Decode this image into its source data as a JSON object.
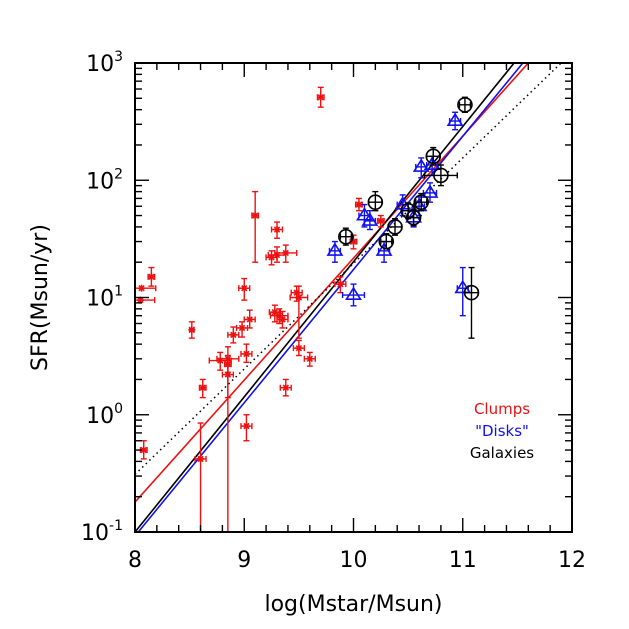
{
  "chart_data": {
    "type": "scatter",
    "xlabel": "log(Mstar/Msun)",
    "ylabel": "SFR(Msun/yr)",
    "xlim": [
      8,
      12
    ],
    "ylim": [
      0.1,
      1000
    ],
    "y_scale": "log",
    "x_ticks": [
      "8",
      "9",
      "10",
      "11",
      "12"
    ],
    "y_ticks": [
      {
        "value": 0.1,
        "base": "10",
        "exp": "-1"
      },
      {
        "value": 1,
        "base": "10",
        "exp": "0"
      },
      {
        "value": 10,
        "base": "10",
        "exp": "1"
      },
      {
        "value": 100,
        "base": "10",
        "exp": "2"
      },
      {
        "value": 1000,
        "base": "10",
        "exp": "3"
      }
    ],
    "legend": {
      "placement": "bottom-right",
      "entries": [
        {
          "label": "Clumps",
          "color": "#ee1111"
        },
        {
          "label": "\"Disks\"",
          "color": "#1111ee"
        },
        {
          "label": "Galaxies",
          "color": "#000000"
        }
      ]
    },
    "series": [
      {
        "name": "Clumps",
        "color": "#ee1111",
        "marker": "asterisk",
        "points": [
          {
            "x": 8.06,
            "y": 12.0,
            "xerr": 0.13,
            "ylo": 12.0,
            "yhi": 12.0
          },
          {
            "x": 8.15,
            "y": 15.0,
            "xerr": 0.03,
            "ylo": 12.5,
            "yhi": 18.0
          },
          {
            "x": 8.05,
            "y": 9.5,
            "xerr": 0.13,
            "ylo": 9.5,
            "yhi": 9.5
          },
          {
            "x": 8.08,
            "y": 0.5,
            "xerr": 0.03,
            "ylo": 0.42,
            "yhi": 0.6
          },
          {
            "x": 8.52,
            "y": 5.3,
            "xerr": 0.02,
            "ylo": 4.5,
            "yhi": 6.2
          },
          {
            "x": 8.62,
            "y": 1.7,
            "xerr": 0.03,
            "ylo": 1.4,
            "yhi": 2.0
          },
          {
            "x": 8.6,
            "y": 0.42,
            "xerr": 0.05,
            "ylo": 0.05,
            "yhi": 0.85
          },
          {
            "x": 8.78,
            "y": 2.9,
            "xerr": 0.1,
            "ylo": 2.4,
            "yhi": 3.4
          },
          {
            "x": 8.85,
            "y": 3.0,
            "xerr": 0.1,
            "ylo": 0.05,
            "yhi": 3.8
          },
          {
            "x": 8.85,
            "y": 2.7,
            "xerr": 0.03,
            "ylo": 2.3,
            "yhi": 3.2
          },
          {
            "x": 8.85,
            "y": 2.2,
            "xerr": 0.05,
            "ylo": 1.4,
            "yhi": 2.6
          },
          {
            "x": 8.9,
            "y": 4.8,
            "xerr": 0.05,
            "ylo": 4.1,
            "yhi": 5.6
          },
          {
            "x": 8.98,
            "y": 5.5,
            "xerr": 0.05,
            "ylo": 4.6,
            "yhi": 6.2
          },
          {
            "x": 9.0,
            "y": 12.0,
            "xerr": 0.05,
            "ylo": 9.5,
            "yhi": 14.5
          },
          {
            "x": 9.02,
            "y": 3.3,
            "xerr": 0.05,
            "ylo": 2.8,
            "yhi": 4.0
          },
          {
            "x": 9.05,
            "y": 6.5,
            "xerr": 0.05,
            "ylo": 5.5,
            "yhi": 7.8
          },
          {
            "x": 9.02,
            "y": 0.8,
            "xerr": 0.05,
            "ylo": 0.6,
            "yhi": 1.0
          },
          {
            "x": 9.1,
            "y": 50,
            "xerr": 0.03,
            "ylo": 20,
            "yhi": 80
          },
          {
            "x": 9.25,
            "y": 22,
            "xerr": 0.05,
            "ylo": 19,
            "yhi": 25
          },
          {
            "x": 9.3,
            "y": 38,
            "xerr": 0.05,
            "ylo": 32,
            "yhi": 44
          },
          {
            "x": 9.3,
            "y": 23,
            "xerr": 0.08,
            "ylo": 20,
            "yhi": 27
          },
          {
            "x": 9.38,
            "y": 24,
            "xerr": 0.1,
            "ylo": 20,
            "yhi": 28
          },
          {
            "x": 9.28,
            "y": 7.5,
            "xerr": 0.05,
            "ylo": 6.2,
            "yhi": 8.6
          },
          {
            "x": 9.32,
            "y": 7.0,
            "xerr": 0.08,
            "ylo": 6.0,
            "yhi": 8.0
          },
          {
            "x": 9.35,
            "y": 6.5,
            "xerr": 0.05,
            "ylo": 5.5,
            "yhi": 7.6
          },
          {
            "x": 9.38,
            "y": 1.7,
            "xerr": 0.05,
            "ylo": 1.45,
            "yhi": 2.0
          },
          {
            "x": 9.48,
            "y": 11,
            "xerr": 0.05,
            "ylo": 9.3,
            "yhi": 12.5
          },
          {
            "x": 9.5,
            "y": 10,
            "xerr": 0.08,
            "ylo": 4.5,
            "yhi": 12.5
          },
          {
            "x": 9.5,
            "y": 3.7,
            "xerr": 0.05,
            "ylo": 3.2,
            "yhi": 4.3
          },
          {
            "x": 9.6,
            "y": 3.0,
            "xerr": 0.05,
            "ylo": 2.6,
            "yhi": 3.4
          },
          {
            "x": 9.7,
            "y": 510,
            "xerr": 0.03,
            "ylo": 420,
            "yhi": 620
          },
          {
            "x": 9.88,
            "y": 13,
            "xerr": 0.05,
            "ylo": 11,
            "yhi": 15
          },
          {
            "x": 10.0,
            "y": 30,
            "xerr": 0.03,
            "ylo": 26,
            "yhi": 34
          },
          {
            "x": 10.05,
            "y": 62,
            "xerr": 0.03,
            "ylo": 55,
            "yhi": 70
          },
          {
            "x": 10.25,
            "y": 45,
            "xerr": 0.03,
            "ylo": 40,
            "yhi": 50
          }
        ]
      },
      {
        "name": "\"Disks\"",
        "color": "#1111ee",
        "marker": "triangle",
        "points": [
          {
            "x": 9.83,
            "y": 25,
            "xerr": 0.05,
            "ylo": 20,
            "yhi": 30
          },
          {
            "x": 10.0,
            "y": 10.5,
            "xerr": 0.1,
            "ylo": 8.5,
            "yhi": 13
          },
          {
            "x": 10.1,
            "y": 50,
            "xerr": 0.05,
            "ylo": 40,
            "yhi": 62
          },
          {
            "x": 10.15,
            "y": 45,
            "xerr": 0.05,
            "ylo": 38,
            "yhi": 55
          },
          {
            "x": 10.28,
            "y": 25,
            "xerr": 0.05,
            "ylo": 20,
            "yhi": 30
          },
          {
            "x": 10.45,
            "y": 62,
            "xerr": 0.05,
            "ylo": 50,
            "yhi": 75
          },
          {
            "x": 10.55,
            "y": 48,
            "xerr": 0.06,
            "ylo": 40,
            "yhi": 58
          },
          {
            "x": 10.6,
            "y": 60,
            "xerr": 0.05,
            "ylo": 50,
            "yhi": 72
          },
          {
            "x": 10.62,
            "y": 130,
            "xerr": 0.05,
            "ylo": 105,
            "yhi": 155
          },
          {
            "x": 10.7,
            "y": 78,
            "xerr": 0.06,
            "ylo": 65,
            "yhi": 95
          },
          {
            "x": 10.72,
            "y": 135,
            "xerr": 0.05,
            "ylo": 110,
            "yhi": 160
          },
          {
            "x": 10.93,
            "y": 320,
            "xerr": 0.05,
            "ylo": 270,
            "yhi": 380
          },
          {
            "x": 11.0,
            "y": 12,
            "xerr": 0.05,
            "ylo": 7,
            "yhi": 18
          }
        ]
      },
      {
        "name": "Galaxies",
        "color": "#000000",
        "marker": "circle",
        "points": [
          {
            "x": 9.93,
            "y": 33,
            "xerr": 0.05,
            "ylo": 28,
            "yhi": 39
          },
          {
            "x": 10.2,
            "y": 65,
            "xerr": 0.06,
            "ylo": 55,
            "yhi": 80
          },
          {
            "x": 10.3,
            "y": 30,
            "xerr": 0.05,
            "ylo": 26,
            "yhi": 35
          },
          {
            "x": 10.38,
            "y": 40,
            "xerr": 0.06,
            "ylo": 34,
            "yhi": 47
          },
          {
            "x": 10.5,
            "y": 55,
            "xerr": 0.06,
            "ylo": 47,
            "yhi": 64
          },
          {
            "x": 10.55,
            "y": 48,
            "xerr": 0.06,
            "ylo": 41,
            "yhi": 56
          },
          {
            "x": 10.62,
            "y": 65,
            "xerr": 0.05,
            "ylo": 55,
            "yhi": 77
          },
          {
            "x": 10.73,
            "y": 160,
            "xerr": 0.06,
            "ylo": 135,
            "yhi": 190
          },
          {
            "x": 10.8,
            "y": 110,
            "xerr": 0.15,
            "ylo": 90,
            "yhi": 135
          },
          {
            "x": 11.02,
            "y": 440,
            "xerr": 0.05,
            "ylo": 380,
            "yhi": 510
          },
          {
            "x": 11.08,
            "y": 11,
            "xerr": 0.06,
            "ylo": 4.5,
            "yhi": 18
          }
        ]
      }
    ],
    "fit_lines": [
      {
        "series": "Clumps",
        "color": "#ee1111",
        "style": "solid",
        "points": [
          [
            8.0,
            0.18
          ],
          [
            11.6,
            1000
          ]
        ]
      },
      {
        "series": "\"Disks\"",
        "color": "#1111ee",
        "style": "solid",
        "points": [
          [
            8.03,
            0.1
          ],
          [
            11.55,
            1000
          ]
        ]
      },
      {
        "series": "Galaxies",
        "color": "#000000",
        "style": "solid",
        "points": [
          [
            8.0,
            0.1
          ],
          [
            11.47,
            1000
          ]
        ]
      },
      {
        "series": "",
        "color": "#000000",
        "style": "dotted",
        "points": [
          [
            8.0,
            0.31
          ],
          [
            11.9,
            1000
          ]
        ]
      }
    ]
  }
}
